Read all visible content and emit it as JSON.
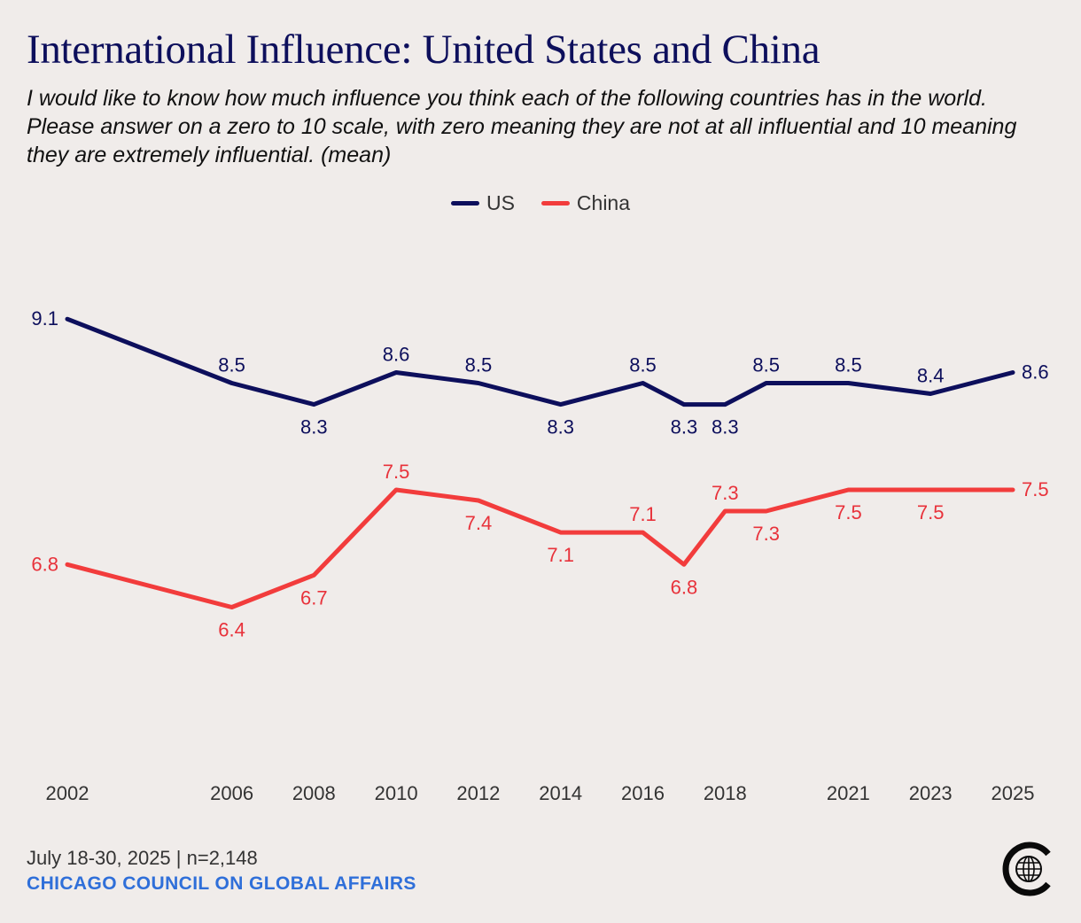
{
  "header": {
    "title": "International Influence: United States and China",
    "subtitle": "I would like to know how much influence you think each of the following countries has in the world. Please answer on a zero to 10 scale, with zero meaning they are not at all influential and 10 meaning they are extremely influential. (mean)"
  },
  "footer": {
    "date_n": "July 18-30, 2025 | n=2,148",
    "source": "CHICAGO COUNCIL ON GLOBAL AFFAIRS"
  },
  "logo": {
    "icon": "globe-c-logo-icon"
  },
  "chart_data": {
    "type": "line",
    "title": "International Influence: United States and China",
    "xlabel": "",
    "ylabel": "",
    "x": [
      2002,
      2006,
      2008,
      2010,
      2012,
      2014,
      2016,
      2017,
      2018,
      2019,
      2021,
      2023,
      2025
    ],
    "xtick_labels": [
      "2002",
      "2006",
      "2008",
      "2010",
      "2012",
      "2014",
      "2016",
      "",
      "2018",
      "",
      "2021",
      "2023",
      "2025"
    ],
    "ylim": [
      5.2,
      9.6
    ],
    "grid": false,
    "legend_position": "top-center",
    "series": [
      {
        "name": "US",
        "color": "#0d0f5c",
        "values": [
          9.1,
          8.5,
          8.3,
          8.6,
          8.5,
          8.3,
          8.5,
          8.3,
          8.3,
          8.5,
          8.5,
          8.4,
          8.6
        ],
        "labels": [
          "9.1",
          "8.5",
          "8.3",
          "8.6",
          "8.5",
          "8.3",
          "8.5",
          "8.3",
          "8.3",
          "8.5",
          "8.5",
          "8.4",
          "8.6"
        ],
        "label_positions": [
          "left",
          "above",
          "below",
          "above",
          "above",
          "below",
          "above",
          "below",
          "below",
          "above",
          "above",
          "above",
          "right"
        ]
      },
      {
        "name": "China",
        "color": "#f23c3c",
        "values": [
          6.8,
          6.4,
          6.7,
          7.5,
          7.4,
          7.1,
          7.1,
          6.8,
          7.3,
          7.3,
          7.5,
          7.5,
          7.5
        ],
        "labels": [
          "6.8",
          "6.4",
          "6.7",
          "7.5",
          "7.4",
          "7.1",
          "7.1",
          "6.8",
          "7.3",
          "7.3",
          "7.5",
          "7.5",
          "7.5"
        ],
        "label_positions": [
          "left",
          "below",
          "below",
          "above",
          "below",
          "below",
          "above",
          "below",
          "above",
          "below",
          "below",
          "below",
          "right"
        ]
      }
    ]
  }
}
